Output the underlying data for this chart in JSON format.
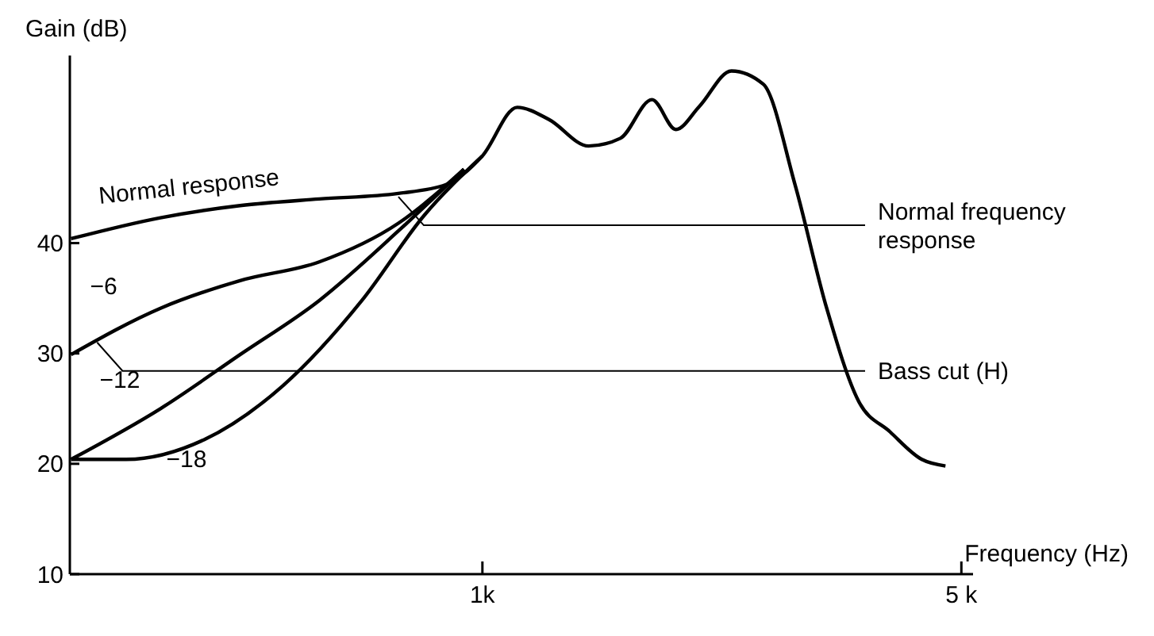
{
  "chart_data": {
    "type": "line",
    "xlabel": "Frequency (Hz)",
    "ylabel": "Gain (dB)",
    "log": "x",
    "xlim": [
      250,
      5200
    ],
    "xticks": [
      {
        "value": 1000,
        "label": "1k"
      },
      {
        "value": 5000,
        "label": "5 k"
      }
    ],
    "ylim": [
      10,
      57
    ],
    "yticks": [
      10,
      20,
      30,
      40
    ],
    "grid": false,
    "line_style": "solid",
    "series": [
      {
        "name": "Normal response",
        "color": "#000000",
        "x": [
          251,
          339,
          443,
          578,
          754,
          885,
          1000,
          1124,
          1251,
          1429,
          1590,
          1768,
          1916,
          2074,
          2309,
          2570,
          2859,
          3180,
          3538,
          3934,
          4377,
          4740
        ],
        "values": [
          40.4,
          42.3,
          43.4,
          44,
          44.5,
          45.3,
          47.9,
          52.3,
          51.2,
          48.8,
          49.5,
          53,
          50.3,
          52.4,
          55.6,
          54.4,
          45.3,
          34.1,
          25.7,
          22.9,
          20.4,
          19.8
        ]
      },
      {
        "name": "−6",
        "color": "#000000",
        "x": [
          251,
          339,
          443,
          578,
          754,
          940
        ],
        "values": [
          29.9,
          34.1,
          36.6,
          38.3,
          41.8,
          46.7
        ]
      },
      {
        "name": "−12",
        "color": "#000000",
        "x": [
          251,
          339,
          443,
          578,
          754,
          940
        ],
        "values": [
          20.4,
          25,
          29.9,
          34.8,
          41.1,
          46.7
        ]
      },
      {
        "name": "−18",
        "color": "#000000",
        "x": [
          251,
          302,
          393,
          512,
          667,
          822,
          1000
        ],
        "values": [
          20.4,
          20.4,
          22.2,
          27.1,
          34.8,
          42.5,
          47.9
        ]
      }
    ],
    "annotations": [
      {
        "text": "Normal frequency response",
        "x": 754,
        "y": 44.2
      },
      {
        "text": "Bass cut (H)",
        "x": 274,
        "y": 31
      }
    ]
  }
}
